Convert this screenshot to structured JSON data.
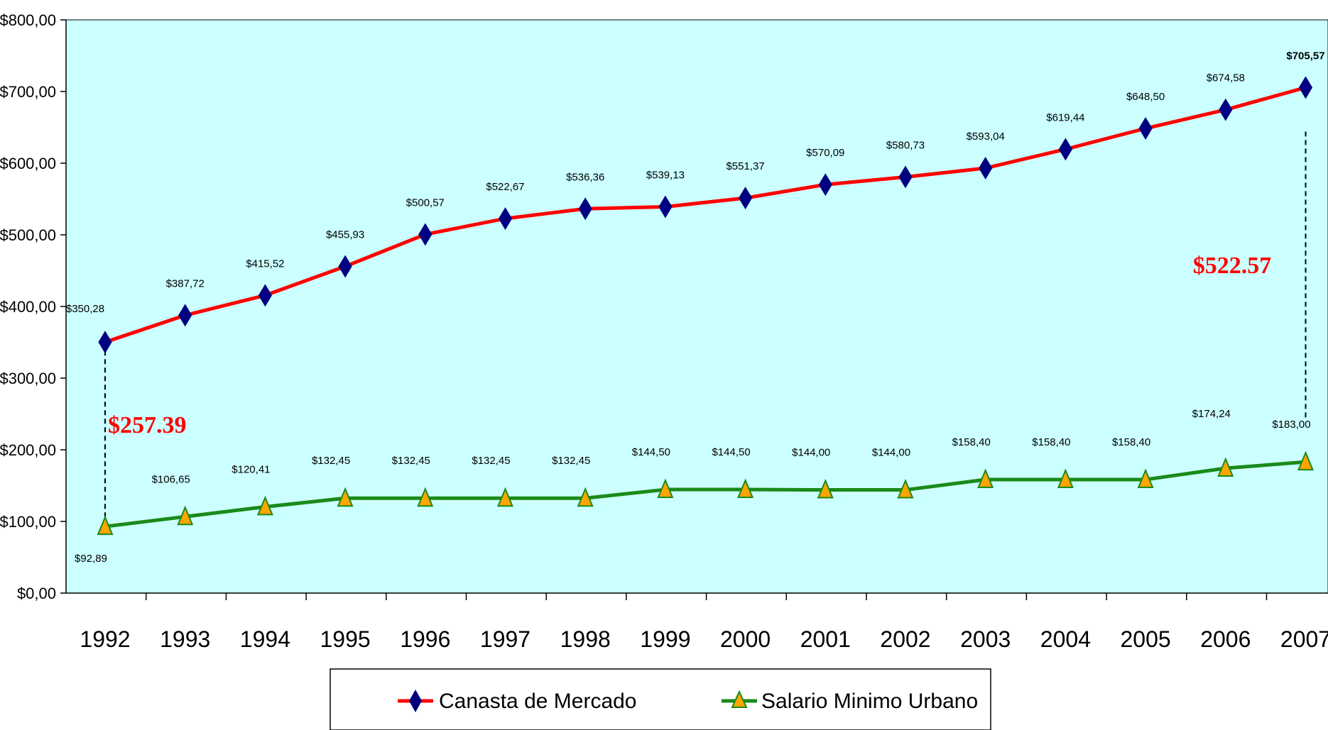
{
  "colors": {
    "plot_bg": "#ccffff",
    "canasta_line": "#ff0000",
    "canasta_marker": "#000080",
    "salario_line": "#1a8a1a",
    "salario_marker": "#ffa500",
    "annotation": "#ff0000"
  },
  "chart_data": {
    "type": "line",
    "title": "",
    "xlabel": "",
    "ylabel": "",
    "ylim": [
      0,
      800
    ],
    "grid": false,
    "legend_position": "bottom",
    "categories": [
      "1992",
      "1993",
      "1994",
      "1995",
      "1996",
      "1997",
      "1998",
      "1999",
      "2000",
      "2001",
      "2002",
      "2003",
      "2004",
      "2005",
      "2006",
      "2007"
    ],
    "y_ticks": [
      {
        "value": 0,
        "label": "$0,00"
      },
      {
        "value": 100,
        "label": "$100,00"
      },
      {
        "value": 200,
        "label": "$200,00"
      },
      {
        "value": 300,
        "label": "$300,00"
      },
      {
        "value": 400,
        "label": "$400,00"
      },
      {
        "value": 500,
        "label": "$500,00"
      },
      {
        "value": 600,
        "label": "$600,00"
      },
      {
        "value": 700,
        "label": "$700,00"
      },
      {
        "value": 800,
        "label": "$800,00"
      }
    ],
    "series": [
      {
        "name": "Canasta de Mercado",
        "marker": "diamond",
        "values": [
          350.28,
          387.72,
          415.52,
          455.93,
          500.57,
          522.67,
          536.36,
          539.13,
          551.37,
          570.09,
          580.73,
          593.04,
          619.44,
          648.5,
          674.58,
          705.57
        ],
        "labels": [
          "$350,28",
          "$387,72",
          "$415,52",
          "$455,93",
          "$500,57",
          "$522,67",
          "$536,36",
          "$539,13",
          "$551,37",
          "$570,09",
          "$580,73",
          "$593,04",
          "$619,44",
          "$648,50",
          "$674,58",
          "$705,57"
        ]
      },
      {
        "name": "Salario Minimo Urbano",
        "marker": "triangle",
        "values": [
          92.89,
          106.65,
          120.41,
          132.45,
          132.45,
          132.45,
          132.45,
          144.5,
          144.5,
          144.0,
          144.0,
          158.4,
          158.4,
          158.4,
          174.24,
          183.0
        ],
        "labels": [
          "$92,89",
          "$106,65",
          "$120,41",
          "$132,45",
          "$132,45",
          "$132,45",
          "$132,45",
          "$144,50",
          "$144,50",
          "$144,00",
          "$144,00",
          "$158,40",
          "$158,40",
          "$158,40",
          "$174,24",
          "$183,00"
        ]
      }
    ],
    "annotations": [
      {
        "text": "$257.39",
        "category": "1992"
      },
      {
        "text": "$522.57",
        "category": "2007"
      }
    ]
  }
}
